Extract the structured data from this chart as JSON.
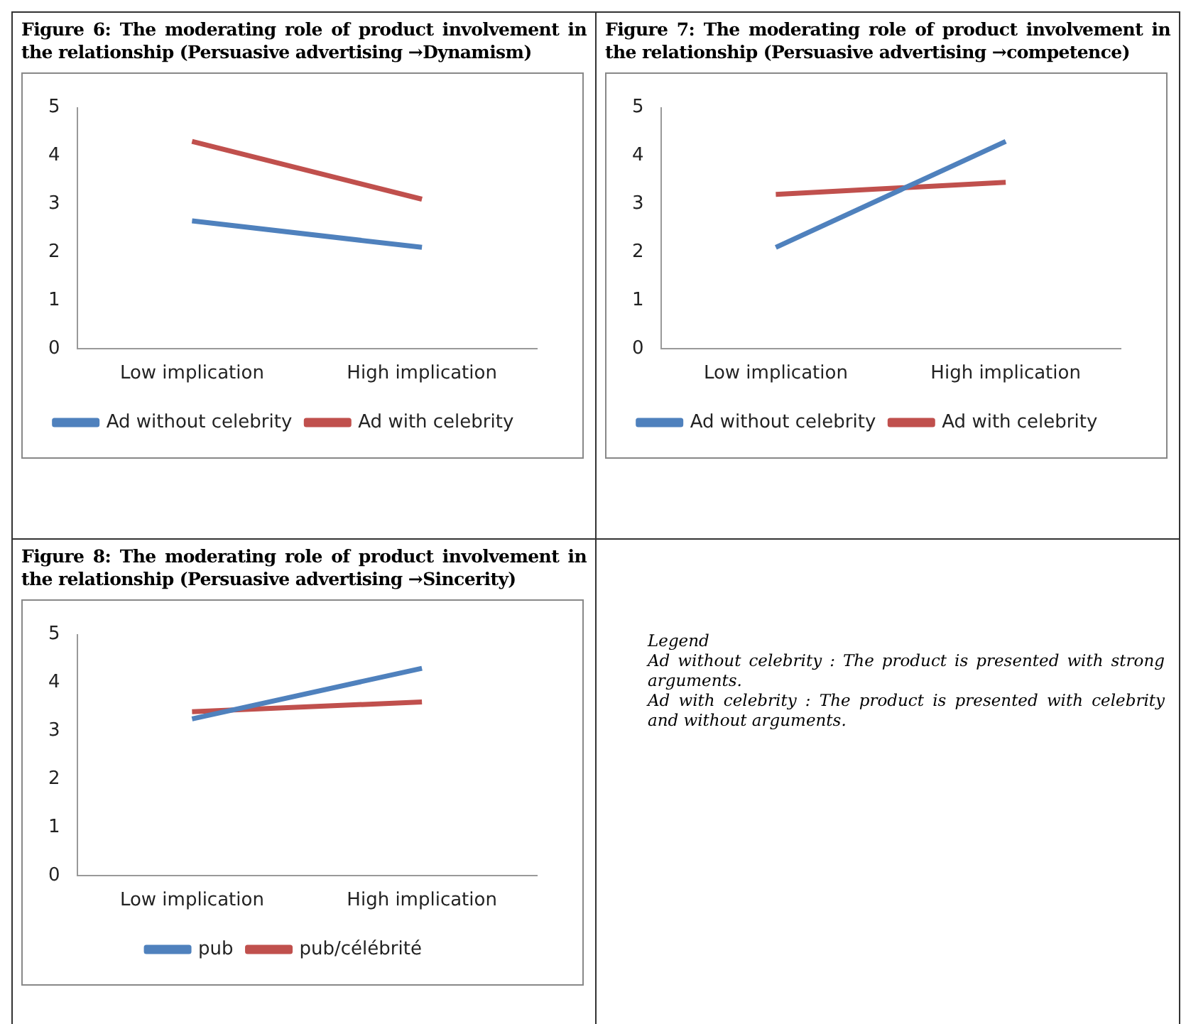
{
  "chart_data": [
    {
      "type": "line",
      "title": "Figure 6: The moderating role of product involvement in the relationship (Persuasive advertising →Dynamism)",
      "categories": [
        "Low implication",
        "High implication"
      ],
      "series": [
        {
          "name": "Ad without celebrity",
          "color": "#4f81bd",
          "values": [
            2.65,
            2.1
          ]
        },
        {
          "name": "Ad with celebrity",
          "color": "#c0504d",
          "values": [
            4.3,
            3.1
          ]
        }
      ],
      "ylim": [
        0,
        5
      ],
      "yticks": [
        0,
        1,
        2,
        3,
        4,
        5
      ],
      "grid": false,
      "legend": "bottom",
      "marker": "none",
      "line_style": "solid"
    },
    {
      "type": "line",
      "title": "Figure 7: The moderating role of product involvement in the relationship (Persuasive advertising →competence)",
      "categories": [
        "Low implication",
        "High implication"
      ],
      "series": [
        {
          "name": "Ad without celebrity",
          "color": "#4f81bd",
          "values": [
            2.1,
            4.3
          ]
        },
        {
          "name": "Ad with celebrity",
          "color": "#c0504d",
          "values": [
            3.2,
            3.45
          ]
        }
      ],
      "ylim": [
        0,
        5
      ],
      "yticks": [
        0,
        1,
        2,
        3,
        4,
        5
      ],
      "grid": false,
      "legend": "bottom",
      "marker": "none",
      "line_style": "solid"
    },
    {
      "type": "line",
      "title": "Figure 8: The moderating role of product involvement in the relationship (Persuasive advertising →Sincerity)",
      "categories": [
        "Low implication",
        "High implication"
      ],
      "series": [
        {
          "name": "pub",
          "color": "#4f81bd",
          "values": [
            3.25,
            4.3
          ]
        },
        {
          "name": "pub/célébrité",
          "color": "#c0504d",
          "values": [
            3.4,
            3.6
          ]
        }
      ],
      "ylim": [
        0,
        5
      ],
      "yticks": [
        0,
        1,
        2,
        3,
        4,
        5
      ],
      "grid": false,
      "legend": "bottom",
      "marker": "none",
      "line_style": "solid"
    },
    {
      "type": "other",
      "annotations": [
        "Legend",
        "Ad without celebrity : The product is presented with strong arguments.",
        "Ad with celebrity : The product is presented with celebrity and without arguments."
      ]
    }
  ]
}
